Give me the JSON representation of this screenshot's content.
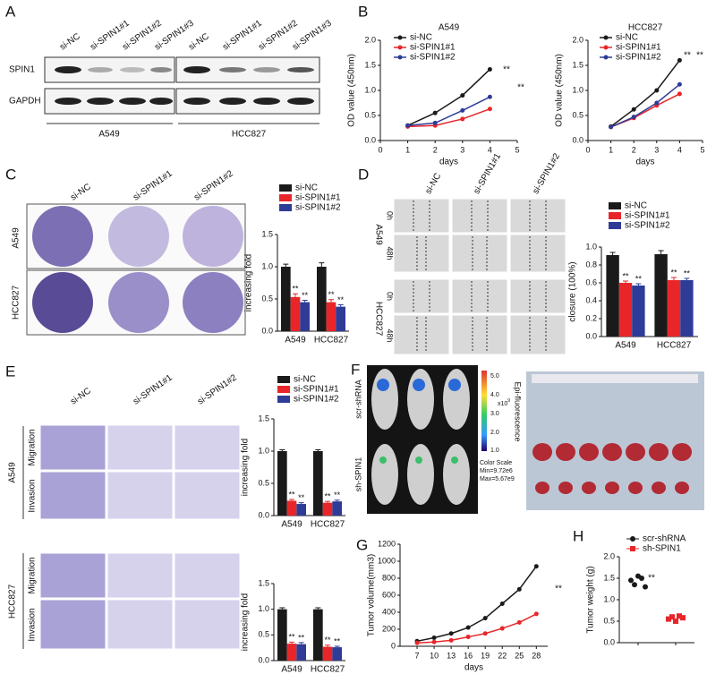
{
  "panels": {
    "letters": [
      "A",
      "B",
      "C",
      "D",
      "E",
      "F",
      "G",
      "H"
    ],
    "A": {
      "lanes": [
        "si-NC",
        "si-SPIN1#1",
        "si-SPIN1#2",
        "si-SPIN1#3"
      ],
      "rows": [
        "SPIN1",
        "GAPDH"
      ],
      "cells": [
        "A549",
        "HCC827"
      ]
    },
    "C": {
      "columns": [
        "si-NC",
        "si-SPIN1#1",
        "si-SPIN1#2"
      ],
      "rows": [
        "A549",
        "HCC827"
      ]
    },
    "D": {
      "columns": [
        "si-NC",
        "si-SPIN1#1",
        "si-SPIN1#2"
      ],
      "rows": [
        "A549",
        "HCC827"
      ],
      "times": [
        "0h",
        "48h"
      ]
    },
    "E": {
      "columns": [
        "si-NC",
        "si-SPIN1#1",
        "si-SPIN1#2"
      ],
      "rows": [
        "A549",
        "HCC827"
      ],
      "assays": [
        "Migration",
        "Invasion"
      ]
    },
    "F": {
      "groups": [
        "scr-shRNA",
        "sh-SPIN1"
      ],
      "colorbar_ticks": [
        "5.0",
        "4.0",
        "3.0",
        "2.0",
        "1.0"
      ],
      "unit": "x10",
      "exponent": "9",
      "axis_label": "Epi-fluorescence",
      "scale": [
        "Color Scale",
        "Min=9.72e6",
        "Max=5.67e9"
      ]
    }
  },
  "chart_data": [
    {
      "type": "line",
      "title": "A549",
      "x": [
        1,
        2,
        3,
        4
      ],
      "series": [
        {
          "name": "si-NC",
          "color": "#1a1a1a",
          "values": [
            0.3,
            0.55,
            0.9,
            1.42
          ]
        },
        {
          "name": "si-SPIN1#1",
          "color": "#e8262a",
          "values": [
            0.28,
            0.3,
            0.43,
            0.63
          ]
        },
        {
          "name": "si-SPIN1#2",
          "color": "#2e3c97",
          "values": [
            0.3,
            0.35,
            0.6,
            0.87
          ]
        }
      ],
      "xlim": [
        0,
        5
      ],
      "xticks": [
        0,
        1,
        2,
        3,
        4,
        5
      ],
      "ylim": [
        0,
        2
      ],
      "yticks": [
        {
          "value": 0,
          "label": "0.0"
        },
        0.5,
        {
          "value": 1,
          "label": "1.0"
        },
        1.5,
        {
          "value": 2,
          "label": "2.0"
        }
      ],
      "x_label": "days",
      "y_label": "OD value (450nm)",
      "annotations": [
        "**",
        "**"
      ]
    },
    {
      "type": "line",
      "title": "HCC827",
      "x": [
        1,
        2,
        3,
        4
      ],
      "series": [
        {
          "name": "si-NC",
          "color": "#1a1a1a",
          "values": [
            0.28,
            0.62,
            1.0,
            1.6
          ]
        },
        {
          "name": "si-SPIN1#1",
          "color": "#e8262a",
          "values": [
            0.27,
            0.45,
            0.7,
            0.93
          ]
        },
        {
          "name": "si-SPIN1#2",
          "color": "#2e3c97",
          "values": [
            0.27,
            0.47,
            0.75,
            1.12
          ]
        }
      ],
      "xlim": [
        0,
        5
      ],
      "xticks": [
        0,
        1,
        2,
        3,
        4,
        5
      ],
      "ylim": [
        0,
        2
      ],
      "yticks": [
        {
          "value": 0,
          "label": "0.0"
        },
        0.5,
        {
          "value": 1,
          "label": "1.0"
        },
        1.5,
        {
          "value": 2,
          "label": "2.0"
        }
      ],
      "x_label": "days",
      "y_label": "OD value (450nm)",
      "annotations": [
        "**",
        "**"
      ]
    },
    {
      "type": "bar",
      "categories": [
        "A549",
        "HCC827"
      ],
      "series": [
        {
          "name": "si-NC",
          "color": "#1a1a1a",
          "values": [
            1.0,
            1.0
          ],
          "errors": [
            0.04,
            0.06
          ]
        },
        {
          "name": "si-SPIN1#1",
          "color": "#e8262a",
          "values": [
            0.53,
            0.45
          ],
          "errors": [
            0.05,
            0.04
          ],
          "significance": [
            "**",
            "**"
          ]
        },
        {
          "name": "si-SPIN1#2",
          "color": "#2e3c97",
          "values": [
            0.45,
            0.38
          ],
          "errors": [
            0.03,
            0.03
          ],
          "significance": [
            "**",
            "**"
          ]
        }
      ],
      "ylim": [
        0,
        1.5
      ],
      "yticks": [
        {
          "value": 0,
          "label": "0.0"
        },
        0.5,
        {
          "value": 1,
          "label": "1.0"
        },
        1.5
      ],
      "y_label": "increasing fold"
    },
    {
      "type": "bar",
      "categories": [
        "A549",
        "HCC827"
      ],
      "series": [
        {
          "name": "si-NC",
          "color": "#1a1a1a",
          "values": [
            0.91,
            0.92
          ],
          "errors": [
            0.03,
            0.04
          ]
        },
        {
          "name": "si-SPIN1#1",
          "color": "#e8262a",
          "values": [
            0.6,
            0.63
          ],
          "errors": [
            0.02,
            0.03
          ],
          "significance": [
            "**",
            "**"
          ]
        },
        {
          "name": "si-SPIN1#2",
          "color": "#2e3c97",
          "values": [
            0.57,
            0.63
          ],
          "errors": [
            0.02,
            0.02
          ],
          "significance": [
            "**",
            "**"
          ]
        }
      ],
      "ylim": [
        0,
        1
      ],
      "yticks": [
        {
          "value": 0,
          "label": "0.0"
        },
        0.2,
        0.4,
        0.6,
        0.8,
        {
          "value": 1,
          "label": "1.0"
        }
      ],
      "y_label": "closure (100%)"
    },
    {
      "type": "bar",
      "categories": [
        "A549",
        "HCC827"
      ],
      "series": [
        {
          "name": "si-NC",
          "color": "#1a1a1a",
          "values": [
            1.0,
            1.0
          ],
          "errors": [
            0.02,
            0.02
          ]
        },
        {
          "name": "si-SPIN1#1",
          "color": "#e8262a",
          "values": [
            0.23,
            0.2
          ],
          "errors": [
            0.02,
            0.02
          ],
          "significance": [
            "**",
            "**"
          ]
        },
        {
          "name": "si-SPIN1#2",
          "color": "#2e3c97",
          "values": [
            0.18,
            0.22
          ],
          "errors": [
            0.02,
            0.02
          ],
          "significance": [
            "**",
            "**"
          ]
        }
      ],
      "ylim": [
        0,
        1.5
      ],
      "yticks": [
        {
          "value": 0,
          "label": "0.0"
        },
        0.5,
        {
          "value": 1,
          "label": "1.0"
        },
        1.5
      ],
      "y_label": "increasing fold"
    },
    {
      "type": "bar",
      "categories": [
        "A549",
        "HCC827"
      ],
      "series": [
        {
          "color": "#1a1a1a",
          "values": [
            1.0,
            1.0
          ],
          "errors": [
            0.03,
            0.03
          ]
        },
        {
          "color": "#e8262a",
          "values": [
            0.33,
            0.27
          ],
          "errors": [
            0.03,
            0.03
          ],
          "significance": [
            "**",
            "**"
          ]
        },
        {
          "color": "#2e3c97",
          "values": [
            0.32,
            0.26
          ],
          "errors": [
            0.03,
            0.02
          ],
          "significance": [
            "**",
            "**"
          ]
        }
      ],
      "ylim": [
        0,
        1.5
      ],
      "yticks": [
        {
          "value": 0,
          "label": "0.0"
        },
        0.5,
        {
          "value": 1,
          "label": "1.0"
        },
        1.5
      ],
      "y_label": "increasing fold"
    },
    {
      "type": "line",
      "x": [
        7,
        10,
        13,
        16,
        19,
        22,
        25,
        28
      ],
      "series": [
        {
          "color": "#1a1a1a",
          "values": [
            60,
            100,
            150,
            220,
            330,
            500,
            670,
            940
          ]
        },
        {
          "color": "#e8262a",
          "values": [
            40,
            50,
            70,
            110,
            150,
            210,
            280,
            380
          ]
        }
      ],
      "xlim": [
        4,
        30
      ],
      "xticks": [
        7,
        10,
        13,
        16,
        19,
        22,
        25,
        28
      ],
      "ylim": [
        0,
        1200
      ],
      "yticks": [
        0,
        200,
        400,
        600,
        800,
        1000,
        1200
      ],
      "x_label": "days",
      "y_label": "Tumor volume(mm3)",
      "annotations": [
        "**"
      ]
    },
    {
      "type": "dot",
      "series": [
        {
          "name": "scr-shRNA",
          "color": "#1a1a1a",
          "marker": "circle",
          "values": [
            1.45,
            1.35,
            1.55,
            1.5,
            1.3
          ]
        },
        {
          "name": "sh-SPIN1",
          "color": "#e8262a",
          "marker": "square",
          "values": [
            0.55,
            0.6,
            0.5,
            0.62,
            0.58
          ]
        }
      ],
      "ylim": [
        0,
        2
      ],
      "yticks": [
        {
          "value": 0,
          "label": "0.0"
        },
        0.5,
        {
          "value": 1,
          "label": "1.0"
        },
        1.5,
        {
          "value": 2,
          "label": "2.0"
        }
      ],
      "y_label": "Tumor weight (g)",
      "annotations": [
        "**"
      ]
    }
  ]
}
